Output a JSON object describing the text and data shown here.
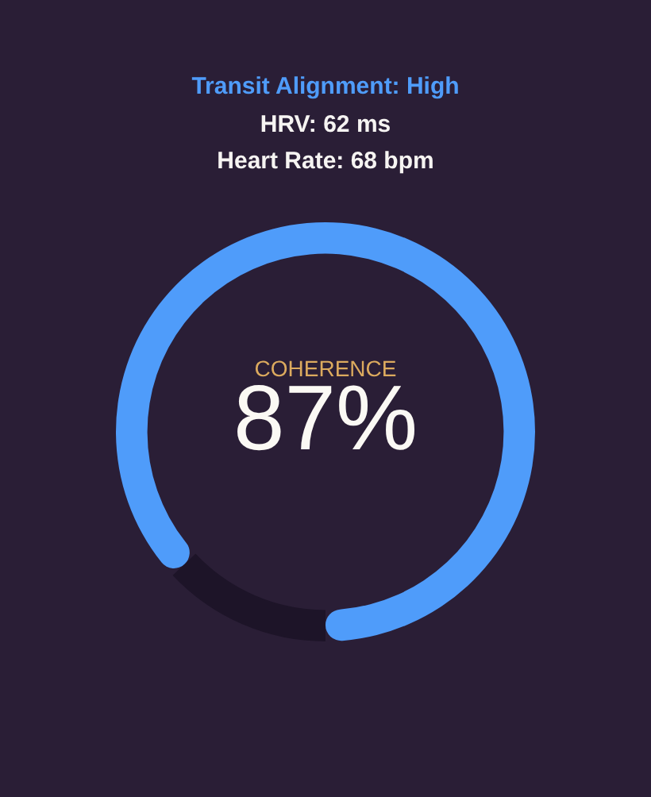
{
  "chart_data": {
    "type": "donut",
    "title": "Transit Alignment: High",
    "annotations": [
      "HRV: 62 ms",
      "Heart Rate: 68 bpm"
    ],
    "categories": [
      "COHERENCE",
      null
    ],
    "values": [
      87,
      13
    ],
    "colors": [
      "#4f9cfa",
      "#1d1428"
    ],
    "value_labels": [
      "87%",
      null
    ]
  }
}
